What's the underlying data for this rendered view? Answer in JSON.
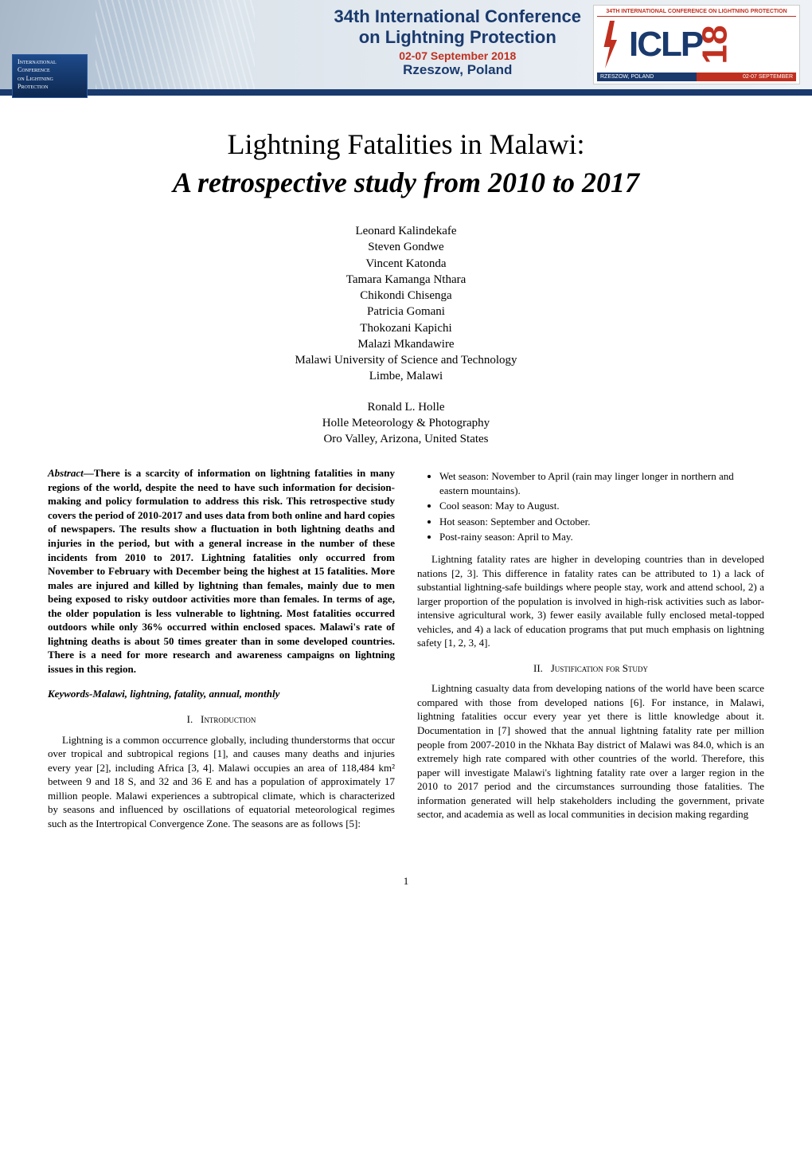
{
  "banner": {
    "conference_title_line1": "34th International Conference",
    "conference_title_line2": "on Lightning Protection",
    "dates": "02-07 September 2018",
    "location": "Rzeszow, Poland",
    "badge_line1": "International",
    "badge_line2": "Conference",
    "badge_line3": "on Lightning",
    "badge_line4": "Protection",
    "iclp_top": "34TH INTERNATIONAL CONFERENCE ON LIGHTNING PROTECTION",
    "iclp_letters": "ICLP",
    "iclp_year": "18",
    "iclp_loc": "RZESZOW, POLAND",
    "iclp_date": "02-07 SEPTEMBER",
    "colors": {
      "navy": "#1a3a6e",
      "red": "#c03020",
      "banner_bg": "#dde5ec"
    }
  },
  "paper": {
    "title": "Lightning Fatalities in Malawi:",
    "subtitle": "A retrospective study from 2010 to 2017",
    "authors_block1": [
      "Leonard Kalindekafe",
      "Steven Gondwe",
      "Vincent Katonda",
      "Tamara Kamanga Nthara",
      "Chikondi Chisenga",
      "Patricia Gomani",
      "Thokozani Kapichi",
      "Malazi Mkandawire",
      "Malawi University of Science and Technology",
      "Limbe, Malawi"
    ],
    "authors_block2": [
      "Ronald L. Holle",
      "Holle Meteorology & Photography",
      "Oro Valley, Arizona, United States"
    ],
    "abstract_label": "Abstract",
    "abstract_text": "—There is a scarcity of information on lightning fatalities in many regions of the world, despite the need to have such information for decision-making and policy formulation to address this risk. This retrospective study covers the period of 2010-2017 and uses data from both online and hard copies of newspapers. The results show a fluctuation in both lightning deaths and injuries in the period, but with a general increase in the number of these incidents from 2010 to 2017. Lightning fatalities only occurred from November to February with December being the highest at 15 fatalities. More males are injured and killed by lightning than females, mainly due to men being exposed to risky outdoor activities more than females. In terms of age, the older population is less vulnerable to lightning. Most fatalities occurred outdoors while only 36% occurred within enclosed spaces. Malawi's rate of lightning deaths is about 50 times greater than in some developed countries. There is a need for more research and awareness campaigns on lightning issues in this region.",
    "keywords": "Keywords-Malawi, lightning, fatality, annual, monthly",
    "section1_num": "I.",
    "section1_name": "Introduction",
    "intro_p1": "Lightning is a common occurrence globally, including thunderstorms that occur over tropical and subtropical regions [1], and causes many deaths and injuries every year [2], including Africa [3, 4]. Malawi occupies an area of 118,484 km² between 9 and 18 S, and 32 and 36 E and has a population of approximately 17 million people. Malawi experiences a subtropical climate, which is characterized by seasons and influenced by oscillations of equatorial meteorological regimes such as the Intertropical Convergence Zone. The seasons are as follows [5]:",
    "seasons": [
      "Wet season: November to April (rain may linger longer in northern and eastern mountains).",
      "Cool season: May to August.",
      "Hot season: September and October.",
      "Post-rainy season: April to May."
    ],
    "intro_p2": "Lightning fatality rates are higher in developing countries than in developed nations [2, 3]. This difference in fatality rates can be attributed to 1) a lack of substantial lightning-safe buildings where people stay, work and attend school, 2) a larger proportion of the population is involved in high-risk activities such as labor-intensive agricultural work, 3) fewer easily available fully enclosed metal-topped vehicles, and 4) a lack of education programs that put much emphasis on lightning safety [1, 2, 3, 4].",
    "section2_num": "II.",
    "section2_name": "Justification for Study",
    "just_p1": "Lightning casualty data from developing nations of the world have been scarce compared with those from developed nations [6]. For instance, in Malawi, lightning fatalities occur every year yet there is little knowledge about it. Documentation in [7] showed that the annual lightning fatality rate per million people from 2007-2010 in the Nkhata Bay district of Malawi was 84.0, which is an extremely high rate compared with other countries of the world. Therefore, this paper will investigate Malawi's lightning fatality rate over a larger region in the 2010 to 2017 period and the circumstances surrounding those fatalities. The information generated will help stakeholders including the government, private sector, and academia as well as local communities in decision making regarding"
  },
  "page_number": "1"
}
